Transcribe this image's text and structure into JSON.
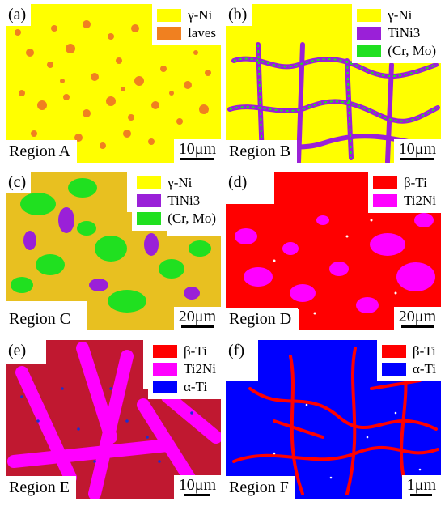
{
  "panels": [
    {
      "label": "(a)",
      "region": "Region A",
      "scale": "10μm",
      "scale_bar_fraction": 0.16,
      "background_color": "#FFFF00",
      "legend": [
        {
          "name": "γ-Ni",
          "color": "#FFFF00"
        },
        {
          "name": "laves",
          "color": "#F08020"
        }
      ]
    },
    {
      "label": "(b)",
      "region": "Region B",
      "scale": "10μm",
      "scale_bar_fraction": 0.16,
      "background_color": "#FFFF00",
      "legend": [
        {
          "name": "γ-Ni",
          "color": "#FFFF00"
        },
        {
          "name": "TiNi3",
          "color": "#9A20D8"
        },
        {
          "name": "(Cr, Mo)",
          "color": "#20E020"
        }
      ]
    },
    {
      "label": "(c)",
      "region": "Region C",
      "scale": "20μm",
      "scale_bar_fraction": 0.15,
      "background_color": "#E8C020",
      "legend": [
        {
          "name": "γ-Ni",
          "color": "#FFFF00"
        },
        {
          "name": "TiNi3",
          "color": "#9A20D8"
        },
        {
          "name": "(Cr, Mo)",
          "color": "#20E020"
        }
      ]
    },
    {
      "label": "(d)",
      "region": "Region D",
      "scale": "20μm",
      "scale_bar_fraction": 0.15,
      "background_color": "#FF0000",
      "legend": [
        {
          "name": "β-Ti",
          "color": "#FF0000"
        },
        {
          "name": "Ti2Ni",
          "color": "#FF00FF"
        }
      ]
    },
    {
      "label": "(e)",
      "region": "Region E",
      "scale": "10μm",
      "scale_bar_fraction": 0.12,
      "background_color": "#C01830",
      "legend": [
        {
          "name": "β-Ti",
          "color": "#FF0000"
        },
        {
          "name": "Ti2Ni",
          "color": "#FF00FF"
        },
        {
          "name": "α-Ti",
          "color": "#0000FF"
        }
      ]
    },
    {
      "label": "(f)",
      "region": "Region F",
      "scale": "1μm",
      "scale_bar_fraction": 0.1,
      "background_color": "#0000FF",
      "legend": [
        {
          "name": "β-Ti",
          "color": "#FF0000"
        },
        {
          "name": "α-Ti",
          "color": "#0000FF"
        }
      ]
    }
  ]
}
